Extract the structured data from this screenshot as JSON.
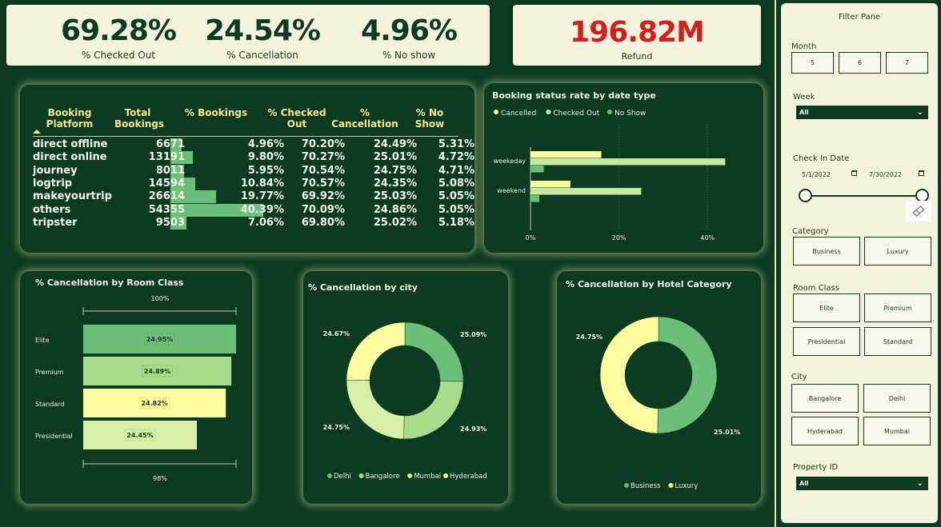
{
  "kpis": {
    "checked_out": {
      "value": "69.28%",
      "label": "% Checked Out"
    },
    "cancellation": {
      "value": "24.54%",
      "label": "% Cancellation"
    },
    "no_show": {
      "value": "4.96%",
      "label": "% No show"
    },
    "refund": {
      "value": "196.82M",
      "label": "Refund"
    }
  },
  "colors": {
    "accent_red": "#d11f1f",
    "bg": "#0d3b21",
    "light": "#fdfda0",
    "mid": "#a6dc8c",
    "dark": "#6cbf78"
  },
  "table": {
    "headers": [
      "Booking Platform",
      "Total Bookings",
      "% Bookings",
      "% Checked Out",
      "% Cancellation",
      "% No Show"
    ],
    "rows": [
      [
        "direct offline",
        "6671",
        "4.96%",
        "70.20%",
        "24.49%",
        "5.31%"
      ],
      [
        "direct online",
        "13191",
        "9.80%",
        "70.27%",
        "25.01%",
        "4.72%"
      ],
      [
        "journey",
        "8011",
        "5.95%",
        "70.54%",
        "24.75%",
        "4.71%"
      ],
      [
        "logtrip",
        "14594",
        "10.84%",
        "70.57%",
        "24.35%",
        "5.08%"
      ],
      [
        "makeyourtrip",
        "26614",
        "19.77%",
        "69.92%",
        "25.03%",
        "5.05%"
      ],
      [
        "others",
        "54355",
        "40.39%",
        "70.09%",
        "24.86%",
        "5.05%"
      ],
      [
        "tripster",
        "9503",
        "7.06%",
        "69.80%",
        "25.02%",
        "5.18%"
      ]
    ]
  },
  "chart_data": [
    {
      "type": "bar",
      "orientation": "horizontal",
      "title": "Booking status rate by date type",
      "categories": [
        "weekeday",
        "weekend"
      ],
      "series": [
        {
          "name": "Cancelled",
          "color": "#fdfda0",
          "values": [
            16,
            9
          ]
        },
        {
          "name": "Checked Out",
          "color": "#c7e8a0",
          "values": [
            44,
            25
          ]
        },
        {
          "name": "No Show",
          "color": "#6cbf78",
          "values": [
            3,
            2
          ]
        }
      ],
      "xticks": [
        "0%",
        "20%",
        "40%"
      ],
      "xlim": [
        0,
        47
      ],
      "legend": "top-left"
    },
    {
      "type": "bar",
      "orientation": "horizontal",
      "title": "% Cancellation by Room Class",
      "categories": [
        "Elite",
        "Premium",
        "Standard",
        "Presidential"
      ],
      "values": [
        24.95,
        24.89,
        24.82,
        24.45
      ],
      "labels": [
        "24.95%",
        "24.89%",
        "24.82%",
        "24.45%"
      ],
      "colors": [
        "#6cbf78",
        "#a6dc8c",
        "#fdfda0",
        "#d7f0a8"
      ],
      "top_axis_label": "100%",
      "bottom_axis_label": "98%"
    },
    {
      "type": "pie",
      "donut": true,
      "title": "% Cancellation by city",
      "labels": [
        "Delhi",
        "Bangalore",
        "Mumbai",
        "Hyderabad"
      ],
      "values": [
        25.09,
        24.93,
        24.75,
        24.67
      ],
      "value_labels": [
        "25.09%",
        "24.93%",
        "24.75%",
        "24.67%"
      ],
      "colors": [
        "#6cbf78",
        "#a6dc8c",
        "#d7f0a8",
        "#fdfda0"
      ],
      "legend": "bottom"
    },
    {
      "type": "pie",
      "donut": true,
      "title": "% Cancellation by Hotel Category",
      "labels": [
        "Business",
        "Luxury"
      ],
      "values": [
        25.01,
        24.75
      ],
      "value_labels": [
        "25.01%",
        "24.75%"
      ],
      "colors": [
        "#6cbf78",
        "#fdfda0"
      ],
      "legend": "bottom"
    }
  ],
  "filter": {
    "title": "Filter Pane",
    "month_label": "Month",
    "months": [
      "5",
      "6",
      "7"
    ],
    "week_label": "Week",
    "week_value": "All",
    "checkin_label": "Check In Date",
    "date_start": "5/1/2022",
    "date_end": "7/30/2022",
    "category_label": "Category",
    "categories": [
      "Business",
      "Luxury"
    ],
    "roomclass_label": "Room Class",
    "roomclasses": [
      "Elite",
      "Premium",
      "Presidential",
      "Standard"
    ],
    "city_label": "City",
    "cities": [
      "Bangalore",
      "Delhi",
      "Hyderabad",
      "Mumbai"
    ],
    "property_label": "Property ID",
    "property_value": "All"
  }
}
